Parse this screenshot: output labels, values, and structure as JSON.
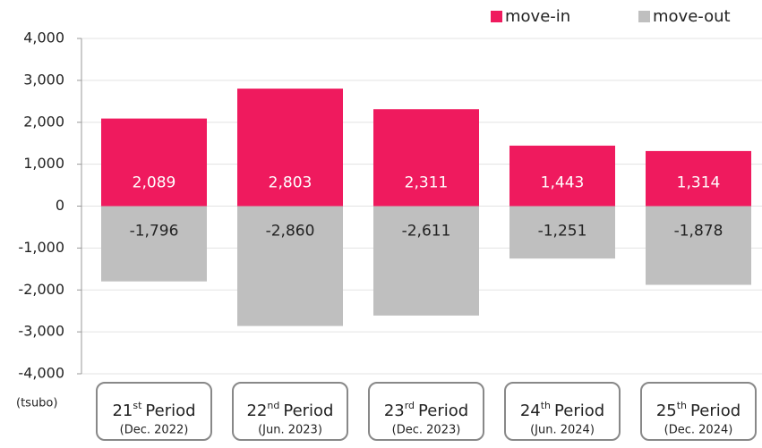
{
  "chart_data": {
    "type": "bar",
    "y_axis_label": "(tsubo)",
    "categories": [
      {
        "num": "21",
        "sup": "st",
        "word": "Period",
        "date": "(Dec. 2022)"
      },
      {
        "num": "22",
        "sup": "nd",
        "word": "Period",
        "date": "(Jun. 2023)"
      },
      {
        "num": "23",
        "sup": "rd",
        "word": "Period",
        "date": "(Dec. 2023)"
      },
      {
        "num": "24",
        "sup": "th",
        "word": "Period",
        "date": "(Jun. 2024)"
      },
      {
        "num": "25",
        "sup": "th",
        "word": "Period",
        "date": "(Dec. 2024)"
      }
    ],
    "series": [
      {
        "name": "move-in",
        "color": "#ef1a5e",
        "label_color": "#ffffff",
        "values": [
          2089,
          2803,
          2311,
          1443,
          1314
        ],
        "value_labels": [
          "2,089",
          "2,803",
          "2,311",
          "1,443",
          "1,314"
        ]
      },
      {
        "name": "move-out",
        "color": "#bfbfbf",
        "label_color": "#222222",
        "values": [
          -1796,
          -2860,
          -2611,
          -1251,
          -1878
        ],
        "value_labels": [
          "-1,796",
          "-2,860",
          "-2,611",
          "-1,251",
          "-1,878"
        ]
      }
    ],
    "ylim": [
      -4000,
      4000
    ],
    "yticks": [
      {
        "value": -4000,
        "label": "-4,000"
      },
      {
        "value": -3000,
        "label": "-3,000"
      },
      {
        "value": -2000,
        "label": "-2,000"
      },
      {
        "value": -1000,
        "label": "-1,000"
      },
      0,
      {
        "value": 1000,
        "label": "1,000"
      },
      {
        "value": 2000,
        "label": "2,000"
      },
      {
        "value": 3000,
        "label": "3,000"
      },
      {
        "value": 4000,
        "label": "4,000"
      }
    ],
    "grid": true,
    "legend": "top-right"
  }
}
